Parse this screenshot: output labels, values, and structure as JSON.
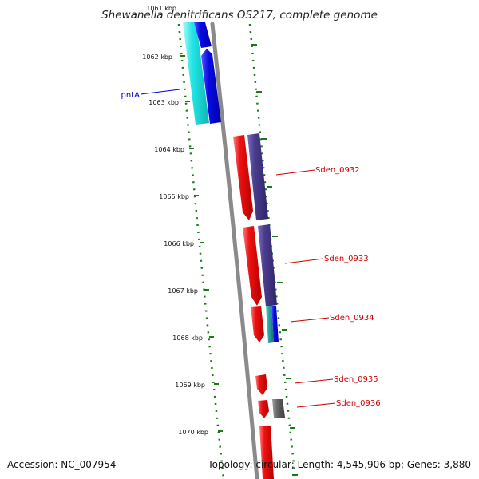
{
  "title": "Shewanella denitrificans OS217, complete genome",
  "footer": {
    "accession": "Accession: NC_007954",
    "topology": "Topology: circular; Length: 4,545,906 bp; Genes: 3,880"
  },
  "ticks": [
    "1061 kbp",
    "1062 kbp",
    "1063 kbp",
    "1064 kbp",
    "1065 kbp",
    "1066 kbp",
    "1067 kbp",
    "1068 kbp",
    "1069 kbp",
    "1070 kbp"
  ],
  "gene_labels": [
    {
      "name": "pntA",
      "color": "#0000cc"
    },
    {
      "name": "Sden_0932",
      "color": "#cc0000"
    },
    {
      "name": "Sden_0933",
      "color": "#cc0000"
    },
    {
      "name": "Sden_0934",
      "color": "#cc0000"
    },
    {
      "name": "Sden_0935",
      "color": "#cc0000"
    },
    {
      "name": "Sden_0936",
      "color": "#cc0000"
    }
  ],
  "colors": {
    "cyan": "#22e6e6",
    "blue": "#0a0ae6",
    "red": "#ee1111",
    "purple": "#4a3c8c",
    "gray": "#666666",
    "backbone": "#8a8a8a",
    "tick_green": "#1a7a1a"
  }
}
